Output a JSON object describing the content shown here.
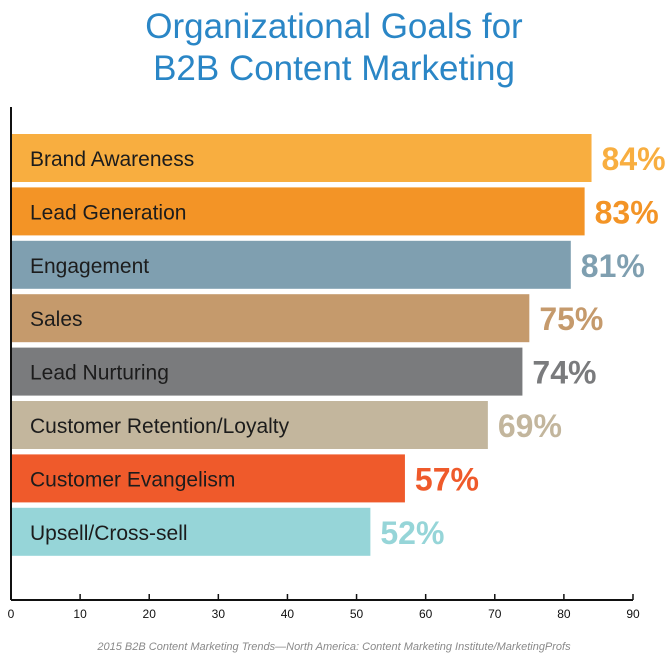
{
  "title_line1": "Organizational Goals for",
  "title_line2": "B2B Content Marketing",
  "source": "2015 B2B Content Marketing Trends—North America: Content Marketing Institute/MarketingProfs",
  "chart_data": {
    "type": "bar",
    "orientation": "horizontal",
    "categories": [
      "Brand Awareness",
      "Lead Generation",
      "Engagement",
      "Sales",
      "Lead Nurturing",
      "Customer Retention/Loyalty",
      "Customer Evangelism",
      "Upsell/Cross-sell"
    ],
    "values": [
      84,
      83,
      81,
      75,
      74,
      69,
      57,
      52
    ],
    "value_labels": [
      "84%",
      "83%",
      "81%",
      "75%",
      "74%",
      "69%",
      "57%",
      "52%"
    ],
    "colors": [
      "#f8ae40",
      "#f39426",
      "#7f9fb0",
      "#c59a6c",
      "#7a7b7d",
      "#c3b69d",
      "#ef5a2b",
      "#96d5d8"
    ],
    "xlim": [
      0,
      90
    ],
    "xticks": [
      "0",
      "10",
      "20",
      "30",
      "40",
      "50",
      "60",
      "70",
      "80",
      "90"
    ],
    "grid": false,
    "legend": "none"
  }
}
